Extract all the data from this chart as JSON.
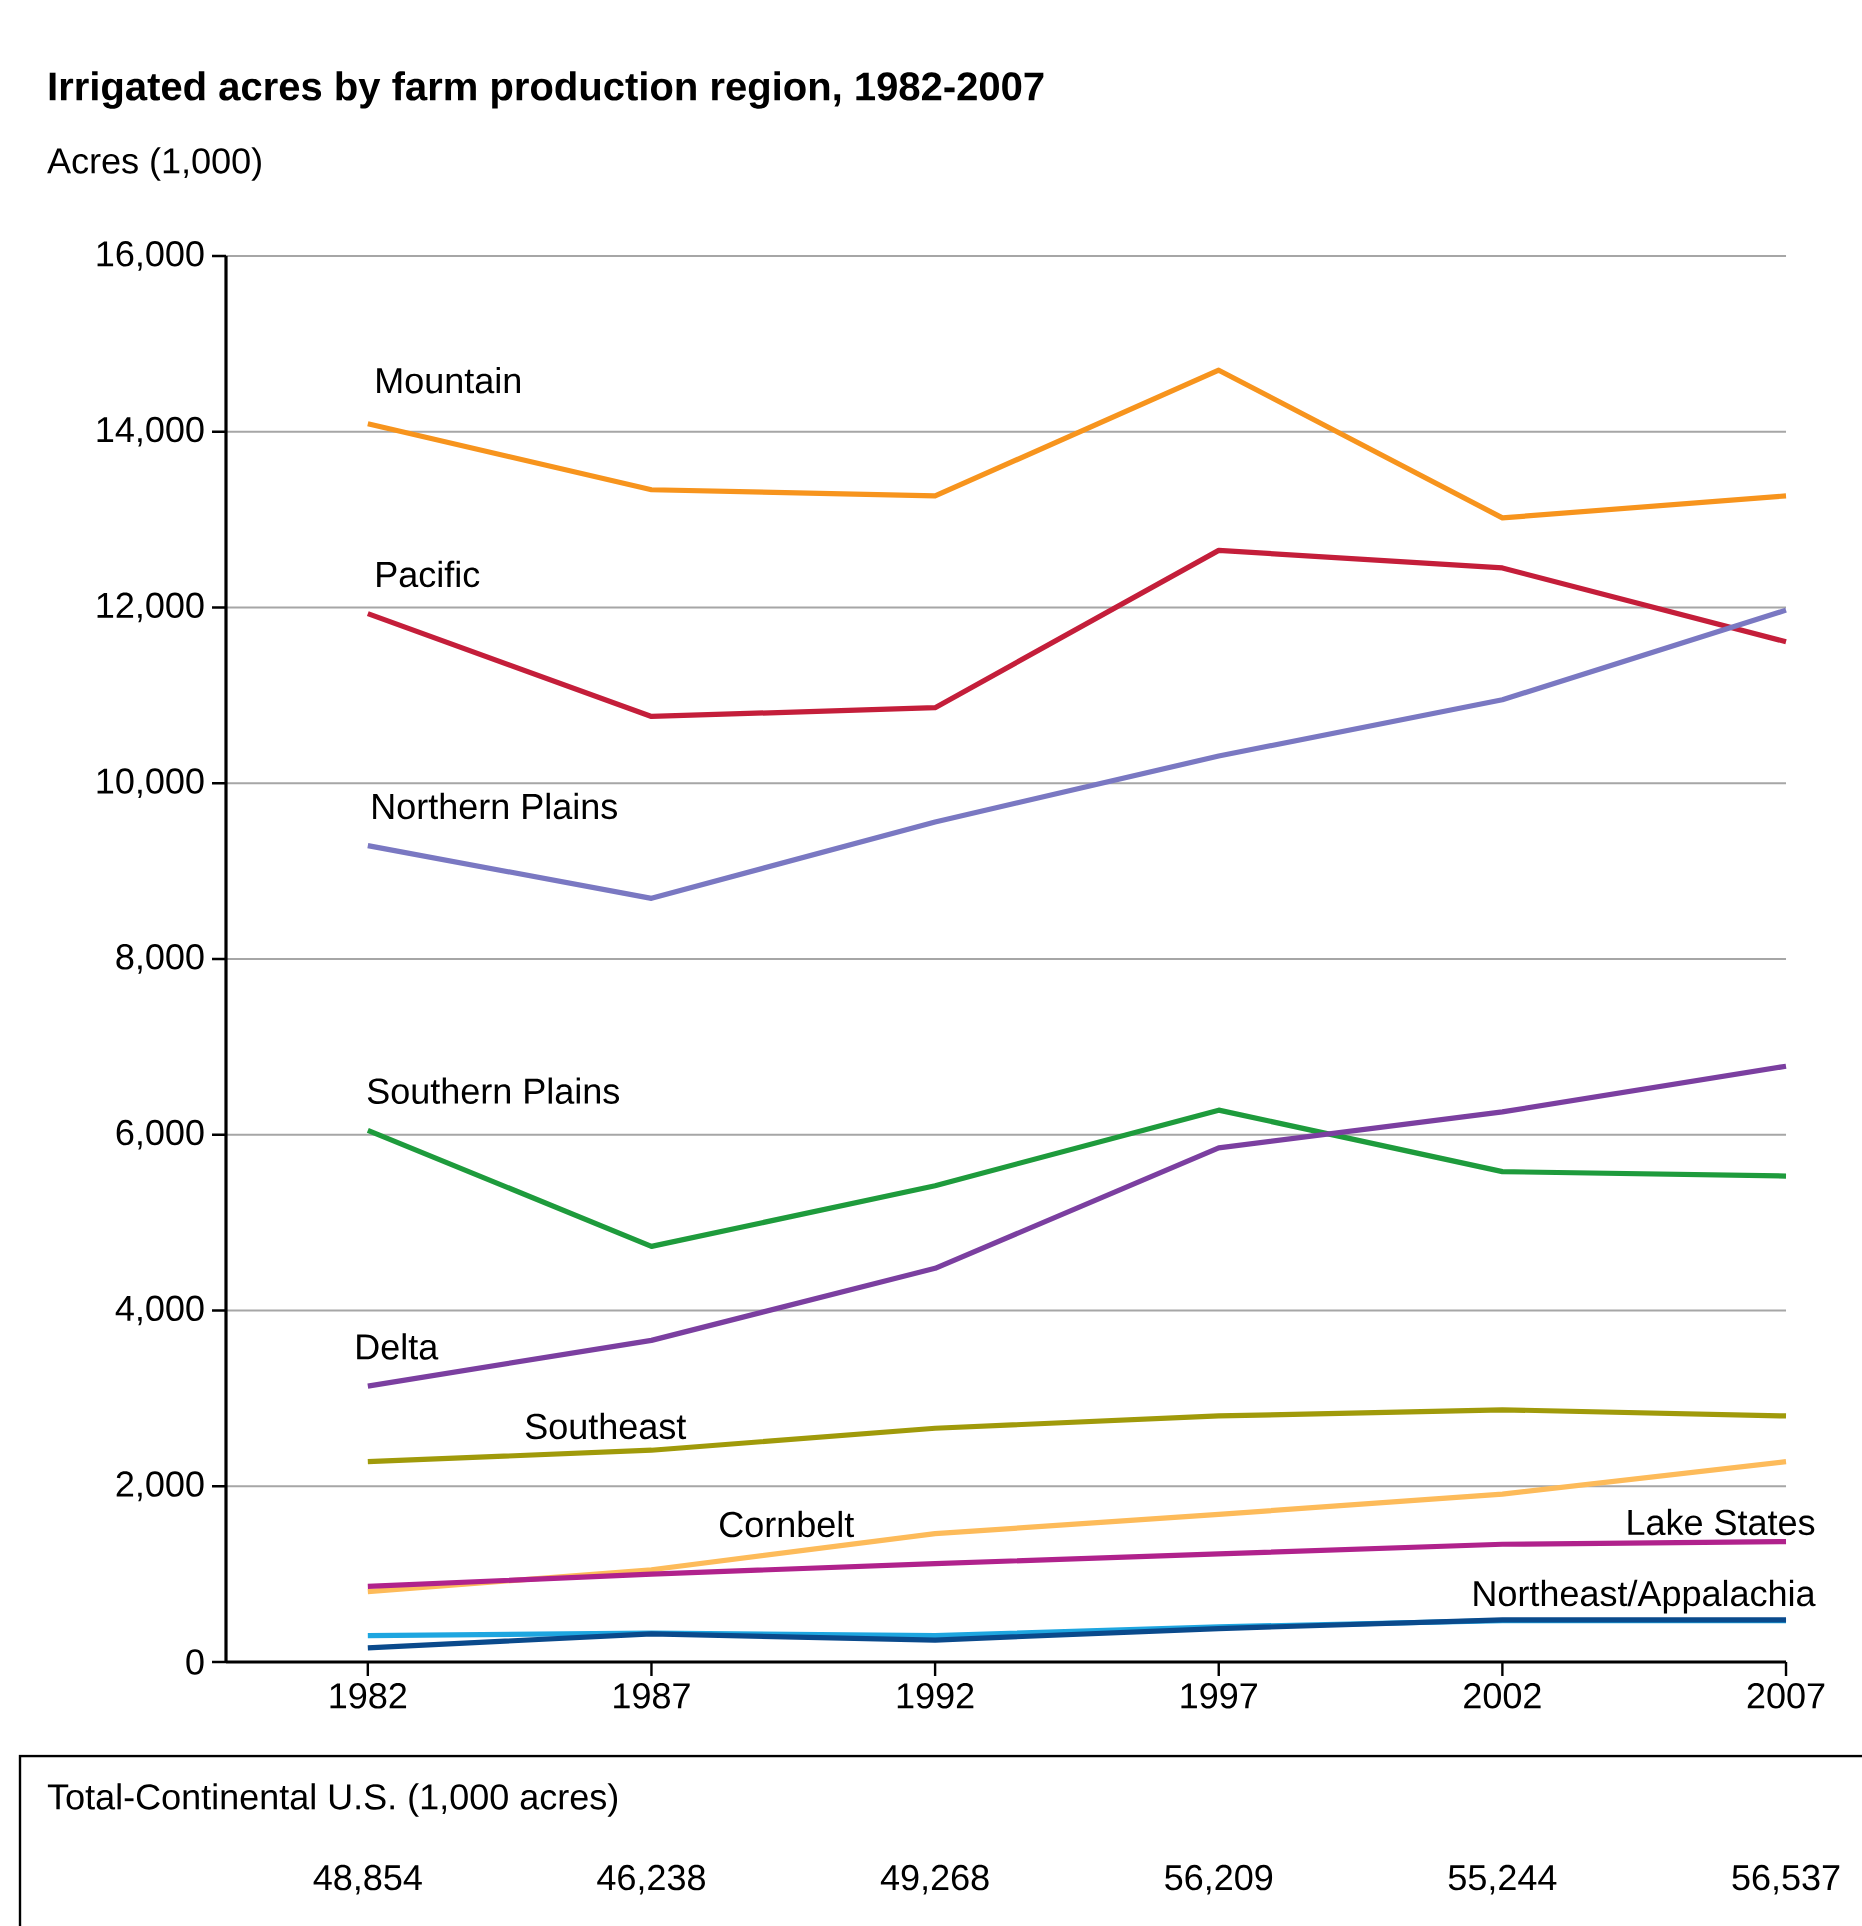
{
  "chart_data": {
    "type": "line",
    "title": "Irrigated acres by farm production region, 1982-2007",
    "ylabel": "Acres (1,000)",
    "x": [
      1982,
      1987,
      1992,
      1997,
      2002,
      2007
    ],
    "xlim": [
      1979.5,
      2007
    ],
    "xticks": [
      1982,
      1987,
      1992,
      1997,
      2002,
      2007
    ],
    "ylim": [
      0,
      16000
    ],
    "yticks": [
      {
        "value": 0,
        "label": "0"
      },
      {
        "value": 2000,
        "label": "2,000"
      },
      {
        "value": 4000,
        "label": "4,000"
      },
      {
        "value": 6000,
        "label": "6,000"
      },
      {
        "value": 8000,
        "label": "8,000"
      },
      {
        "value": 10000,
        "label": "10,000"
      },
      {
        "value": 12000,
        "label": "12,000"
      },
      {
        "value": 14000,
        "label": "14,000"
      },
      {
        "value": 16000,
        "label": "16,000"
      }
    ],
    "grid": "y",
    "legend": false,
    "marker": "none",
    "line_style": "solid",
    "series": [
      {
        "name": "Mountain",
        "color": "#f7941d",
        "values": [
          14090,
          13340,
          13270,
          14700,
          13020,
          13270
        ]
      },
      {
        "name": "Pacific",
        "color": "#c41e3a",
        "values": [
          11930,
          10760,
          10860,
          12650,
          12450,
          11610
        ]
      },
      {
        "name": "Northern Plains",
        "color": "#7a78c2",
        "values": [
          9290,
          8690,
          9560,
          10310,
          10950,
          11970
        ]
      },
      {
        "name": "Southern Plains",
        "color": "#1e9b3c",
        "values": [
          6050,
          4730,
          5420,
          6280,
          5580,
          5530
        ]
      },
      {
        "name": "Delta",
        "color": "#7b3fa0",
        "values": [
          3140,
          3660,
          4480,
          5850,
          6260,
          6780
        ]
      },
      {
        "name": "Southeast",
        "color": "#a09a0a",
        "values": [
          2280,
          2410,
          2660,
          2800,
          2870,
          2800
        ]
      },
      {
        "name": "Cornbelt",
        "color": "#fdbb5a",
        "values": [
          800,
          1050,
          1460,
          1680,
          1910,
          2280
        ]
      },
      {
        "name": "Lake States",
        "color": "#b0228c",
        "values": [
          860,
          1000,
          1120,
          1230,
          1340,
          1370
        ]
      },
      {
        "color": "#1ea6e0",
        "values": [
          300,
          330,
          300,
          400,
          470,
          470
        ]
      },
      {
        "name": "Northeast/Appalachia",
        "color": "#0a4a8c",
        "values": [
          160,
          320,
          250,
          380,
          480,
          480
        ]
      }
    ],
    "annotations": [
      "Total-Continental U.S. (1,000 acres)"
    ],
    "totals": [
      "48,854",
      "46,238",
      "49,268",
      "56,209",
      "55,244",
      "56,537"
    ]
  }
}
